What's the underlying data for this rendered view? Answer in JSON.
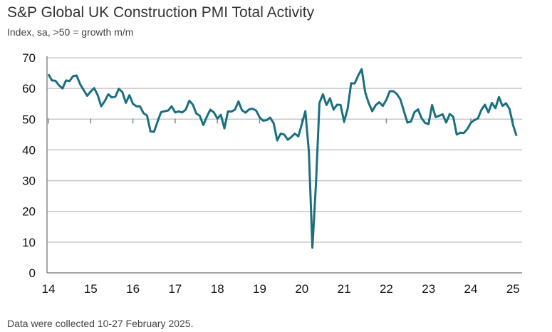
{
  "chart_data": {
    "type": "line",
    "title": "S&P Global UK Construction PMI Total Activity",
    "subtitle": "Index, sa, >50 = growth m/m",
    "footnote": "Data were collected 10-27 February 2025.",
    "xlabel": "",
    "ylabel": "",
    "ylim": [
      0,
      70
    ],
    "yticks": [
      0,
      10,
      20,
      30,
      40,
      50,
      60,
      70
    ],
    "xticks": [
      "14",
      "15",
      "16",
      "17",
      "18",
      "19",
      "20",
      "21",
      "22",
      "23",
      "24",
      "25"
    ],
    "grid": true,
    "line_color": "#1a6f80",
    "start": "2014-01",
    "frequency": "monthly",
    "series": [
      {
        "name": "Total Activity",
        "values": [
          64.6,
          62.6,
          62.5,
          61.0,
          60.0,
          62.6,
          62.4,
          64.0,
          64.2,
          61.4,
          59.5,
          57.6,
          59.0,
          60.1,
          57.8,
          54.2,
          55.9,
          58.1,
          57.1,
          57.3,
          59.9,
          58.8,
          55.3,
          57.8,
          55.0,
          54.2,
          54.2,
          52.0,
          51.2,
          46.0,
          45.9,
          49.2,
          52.3,
          52.6,
          52.8,
          54.2,
          52.2,
          52.5,
          52.2,
          53.1,
          56.0,
          54.8,
          51.9,
          51.1,
          48.1,
          50.8,
          53.1,
          52.2,
          50.2,
          51.4,
          47.0,
          52.5,
          52.5,
          53.1,
          55.8,
          52.9,
          52.1,
          53.2,
          53.4,
          52.8,
          50.6,
          49.5,
          49.7,
          50.5,
          48.6,
          43.1,
          45.3,
          45.0,
          43.3,
          44.2,
          45.3,
          44.4,
          48.4,
          52.6,
          39.3,
          8.2,
          28.9,
          55.3,
          58.1,
          54.6,
          56.8,
          53.1,
          54.7,
          54.6,
          49.2,
          53.3,
          61.7,
          61.6,
          64.2,
          66.3,
          58.7,
          55.2,
          52.6,
          54.6,
          55.5,
          54.3,
          56.3,
          59.1,
          59.1,
          58.2,
          56.4,
          52.6,
          48.9,
          49.2,
          52.3,
          53.2,
          50.4,
          48.8,
          48.4,
          54.6,
          50.7,
          51.1,
          51.6,
          48.9,
          51.7,
          50.8,
          45.0,
          45.6,
          45.5,
          46.8,
          48.8,
          49.7,
          50.2,
          53.0,
          54.7,
          52.2,
          55.3,
          53.6,
          57.2,
          54.3,
          55.2,
          53.3,
          48.1,
          44.6
        ]
      }
    ]
  }
}
